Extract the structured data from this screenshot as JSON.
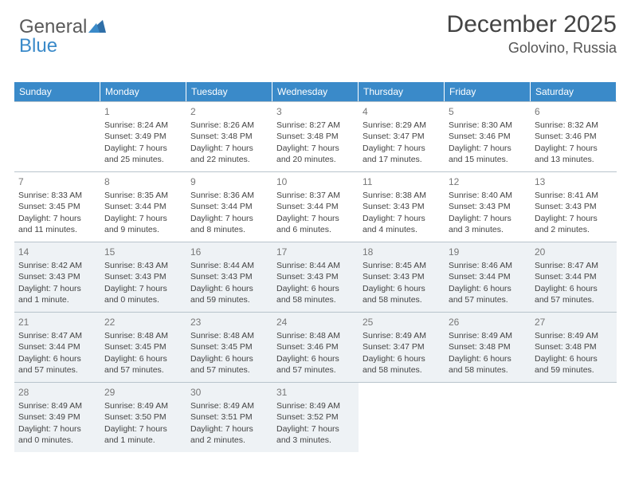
{
  "logo": {
    "text1": "General",
    "text2": "Blue"
  },
  "title": "December 2025",
  "location": "Golovino, Russia",
  "day_headers": [
    "Sunday",
    "Monday",
    "Tuesday",
    "Wednesday",
    "Thursday",
    "Friday",
    "Saturday"
  ],
  "colors": {
    "header_bg": "#3a8ac9",
    "header_text": "#ffffff",
    "shaded_bg": "#eef2f5",
    "border": "#b8c4cc",
    "text": "#444444",
    "daynum": "#777777"
  },
  "cells": [
    {
      "day": "",
      "sunrise": "",
      "sunset": "",
      "daylight": "",
      "shaded": false
    },
    {
      "day": "1",
      "sunrise": "Sunrise: 8:24 AM",
      "sunset": "Sunset: 3:49 PM",
      "daylight": "Daylight: 7 hours and 25 minutes.",
      "shaded": false
    },
    {
      "day": "2",
      "sunrise": "Sunrise: 8:26 AM",
      "sunset": "Sunset: 3:48 PM",
      "daylight": "Daylight: 7 hours and 22 minutes.",
      "shaded": false
    },
    {
      "day": "3",
      "sunrise": "Sunrise: 8:27 AM",
      "sunset": "Sunset: 3:48 PM",
      "daylight": "Daylight: 7 hours and 20 minutes.",
      "shaded": false
    },
    {
      "day": "4",
      "sunrise": "Sunrise: 8:29 AM",
      "sunset": "Sunset: 3:47 PM",
      "daylight": "Daylight: 7 hours and 17 minutes.",
      "shaded": false
    },
    {
      "day": "5",
      "sunrise": "Sunrise: 8:30 AM",
      "sunset": "Sunset: 3:46 PM",
      "daylight": "Daylight: 7 hours and 15 minutes.",
      "shaded": false
    },
    {
      "day": "6",
      "sunrise": "Sunrise: 8:32 AM",
      "sunset": "Sunset: 3:46 PM",
      "daylight": "Daylight: 7 hours and 13 minutes.",
      "shaded": false
    },
    {
      "day": "7",
      "sunrise": "Sunrise: 8:33 AM",
      "sunset": "Sunset: 3:45 PM",
      "daylight": "Daylight: 7 hours and 11 minutes.",
      "shaded": false
    },
    {
      "day": "8",
      "sunrise": "Sunrise: 8:35 AM",
      "sunset": "Sunset: 3:44 PM",
      "daylight": "Daylight: 7 hours and 9 minutes.",
      "shaded": false
    },
    {
      "day": "9",
      "sunrise": "Sunrise: 8:36 AM",
      "sunset": "Sunset: 3:44 PM",
      "daylight": "Daylight: 7 hours and 8 minutes.",
      "shaded": false
    },
    {
      "day": "10",
      "sunrise": "Sunrise: 8:37 AM",
      "sunset": "Sunset: 3:44 PM",
      "daylight": "Daylight: 7 hours and 6 minutes.",
      "shaded": false
    },
    {
      "day": "11",
      "sunrise": "Sunrise: 8:38 AM",
      "sunset": "Sunset: 3:43 PM",
      "daylight": "Daylight: 7 hours and 4 minutes.",
      "shaded": false
    },
    {
      "day": "12",
      "sunrise": "Sunrise: 8:40 AM",
      "sunset": "Sunset: 3:43 PM",
      "daylight": "Daylight: 7 hours and 3 minutes.",
      "shaded": false
    },
    {
      "day": "13",
      "sunrise": "Sunrise: 8:41 AM",
      "sunset": "Sunset: 3:43 PM",
      "daylight": "Daylight: 7 hours and 2 minutes.",
      "shaded": false
    },
    {
      "day": "14",
      "sunrise": "Sunrise: 8:42 AM",
      "sunset": "Sunset: 3:43 PM",
      "daylight": "Daylight: 7 hours and 1 minute.",
      "shaded": true
    },
    {
      "day": "15",
      "sunrise": "Sunrise: 8:43 AM",
      "sunset": "Sunset: 3:43 PM",
      "daylight": "Daylight: 7 hours and 0 minutes.",
      "shaded": true
    },
    {
      "day": "16",
      "sunrise": "Sunrise: 8:44 AM",
      "sunset": "Sunset: 3:43 PM",
      "daylight": "Daylight: 6 hours and 59 minutes.",
      "shaded": true
    },
    {
      "day": "17",
      "sunrise": "Sunrise: 8:44 AM",
      "sunset": "Sunset: 3:43 PM",
      "daylight": "Daylight: 6 hours and 58 minutes.",
      "shaded": true
    },
    {
      "day": "18",
      "sunrise": "Sunrise: 8:45 AM",
      "sunset": "Sunset: 3:43 PM",
      "daylight": "Daylight: 6 hours and 58 minutes.",
      "shaded": true
    },
    {
      "day": "19",
      "sunrise": "Sunrise: 8:46 AM",
      "sunset": "Sunset: 3:44 PM",
      "daylight": "Daylight: 6 hours and 57 minutes.",
      "shaded": true
    },
    {
      "day": "20",
      "sunrise": "Sunrise: 8:47 AM",
      "sunset": "Sunset: 3:44 PM",
      "daylight": "Daylight: 6 hours and 57 minutes.",
      "shaded": true
    },
    {
      "day": "21",
      "sunrise": "Sunrise: 8:47 AM",
      "sunset": "Sunset: 3:44 PM",
      "daylight": "Daylight: 6 hours and 57 minutes.",
      "shaded": true
    },
    {
      "day": "22",
      "sunrise": "Sunrise: 8:48 AM",
      "sunset": "Sunset: 3:45 PM",
      "daylight": "Daylight: 6 hours and 57 minutes.",
      "shaded": true
    },
    {
      "day": "23",
      "sunrise": "Sunrise: 8:48 AM",
      "sunset": "Sunset: 3:45 PM",
      "daylight": "Daylight: 6 hours and 57 minutes.",
      "shaded": true
    },
    {
      "day": "24",
      "sunrise": "Sunrise: 8:48 AM",
      "sunset": "Sunset: 3:46 PM",
      "daylight": "Daylight: 6 hours and 57 minutes.",
      "shaded": true
    },
    {
      "day": "25",
      "sunrise": "Sunrise: 8:49 AM",
      "sunset": "Sunset: 3:47 PM",
      "daylight": "Daylight: 6 hours and 58 minutes.",
      "shaded": true
    },
    {
      "day": "26",
      "sunrise": "Sunrise: 8:49 AM",
      "sunset": "Sunset: 3:48 PM",
      "daylight": "Daylight: 6 hours and 58 minutes.",
      "shaded": true
    },
    {
      "day": "27",
      "sunrise": "Sunrise: 8:49 AM",
      "sunset": "Sunset: 3:48 PM",
      "daylight": "Daylight: 6 hours and 59 minutes.",
      "shaded": true
    },
    {
      "day": "28",
      "sunrise": "Sunrise: 8:49 AM",
      "sunset": "Sunset: 3:49 PM",
      "daylight": "Daylight: 7 hours and 0 minutes.",
      "shaded": true
    },
    {
      "day": "29",
      "sunrise": "Sunrise: 8:49 AM",
      "sunset": "Sunset: 3:50 PM",
      "daylight": "Daylight: 7 hours and 1 minute.",
      "shaded": true
    },
    {
      "day": "30",
      "sunrise": "Sunrise: 8:49 AM",
      "sunset": "Sunset: 3:51 PM",
      "daylight": "Daylight: 7 hours and 2 minutes.",
      "shaded": true
    },
    {
      "day": "31",
      "sunrise": "Sunrise: 8:49 AM",
      "sunset": "Sunset: 3:52 PM",
      "daylight": "Daylight: 7 hours and 3 minutes.",
      "shaded": true
    },
    {
      "day": "",
      "sunrise": "",
      "sunset": "",
      "daylight": "",
      "shaded": false
    },
    {
      "day": "",
      "sunrise": "",
      "sunset": "",
      "daylight": "",
      "shaded": false
    },
    {
      "day": "",
      "sunrise": "",
      "sunset": "",
      "daylight": "",
      "shaded": false
    }
  ]
}
